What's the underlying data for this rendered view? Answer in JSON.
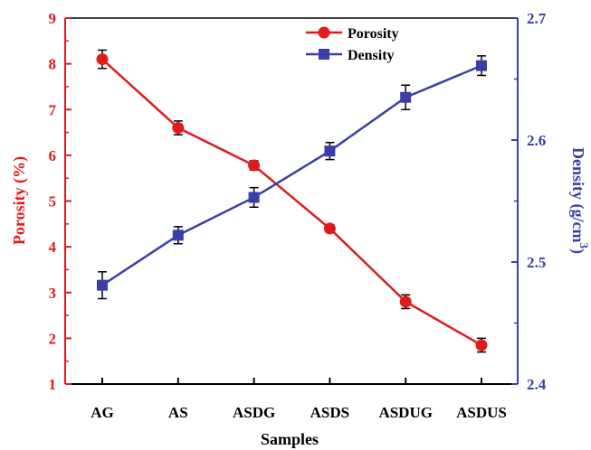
{
  "chart_data": {
    "type": "line",
    "categories": [
      "AG",
      "AS",
      "ASDG",
      "ASDS",
      "ASDUG",
      "ASDUS"
    ],
    "xlabel": "Samples",
    "y_left": {
      "label": "Porosity (%)",
      "range": [
        1,
        9
      ],
      "ticks": [
        "1",
        "2",
        "3",
        "4",
        "5",
        "6",
        "7",
        "8",
        "9"
      ],
      "color": "#e01b1b"
    },
    "y_right": {
      "label_main": "Density (g/cm",
      "label_sup": "3",
      "label_close": ")",
      "range": [
        2.4,
        2.7
      ],
      "ticks": [
        "2.4",
        "2.5",
        "2.6",
        "2.7"
      ],
      "color": "#3a3fa8"
    },
    "series": [
      {
        "name": "Porosity",
        "axis": "left",
        "marker": "circle",
        "color": "#e01b1b",
        "values": [
          8.1,
          6.6,
          5.78,
          4.4,
          2.8,
          1.85
        ],
        "errors": [
          0.2,
          0.15,
          0.1,
          0.08,
          0.15,
          0.15
        ]
      },
      {
        "name": "Density",
        "axis": "right",
        "marker": "square",
        "color": "#3a3fa8",
        "values": [
          2.481,
          2.522,
          2.553,
          2.591,
          2.635,
          2.661
        ],
        "errors": [
          0.011,
          0.007,
          0.008,
          0.007,
          0.01,
          0.008
        ]
      }
    ],
    "legend_position": "top-center"
  }
}
